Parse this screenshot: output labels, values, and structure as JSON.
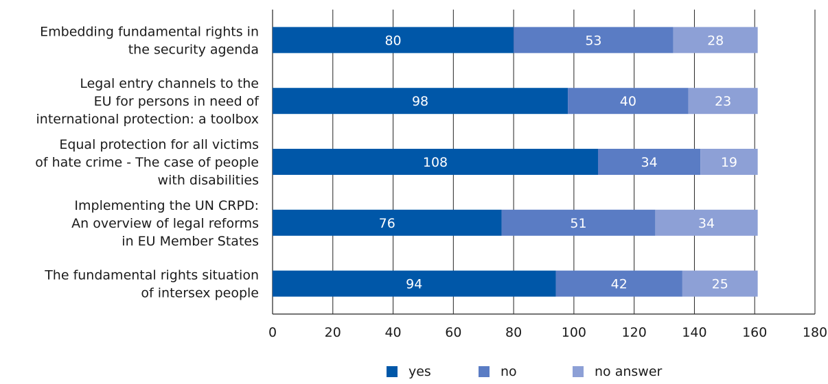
{
  "chart_data": {
    "type": "bar",
    "orientation": "horizontal",
    "stacked": true,
    "categories": [
      [
        "Embedding fundamental rights in",
        "the security agenda"
      ],
      [
        "Legal entry channels to the",
        "EU for persons in need of",
        "international protection: a toolbox"
      ],
      [
        "Equal protection for all victims",
        "of hate crime - The case of people",
        "with disabilities"
      ],
      [
        "Implementing the UN CRPD:",
        "An overview of legal reforms",
        "in EU Member States"
      ],
      [
        "The fundamental rights situation",
        "of intersex people"
      ]
    ],
    "series": [
      {
        "name": "yes",
        "color": "#0057a8",
        "values": [
          80,
          98,
          108,
          76,
          94
        ]
      },
      {
        "name": "no",
        "color": "#5a7cc4",
        "values": [
          53,
          40,
          34,
          51,
          42
        ]
      },
      {
        "name": "no answer",
        "color": "#8da0d6",
        "values": [
          28,
          23,
          19,
          34,
          25
        ]
      }
    ],
    "xlim": [
      0,
      180
    ],
    "xticks": [
      "0",
      "20",
      "40",
      "60",
      "80",
      "100",
      "120",
      "140",
      "160",
      "180"
    ],
    "grid": true,
    "legend_position": "bottom"
  }
}
